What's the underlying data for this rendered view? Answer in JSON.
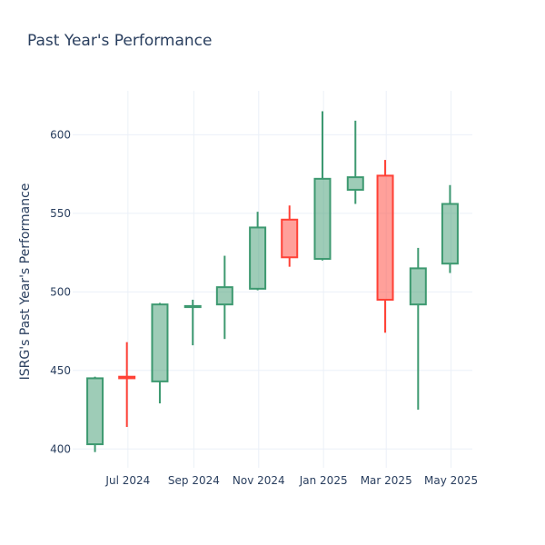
{
  "chart_data": {
    "type": "candlestick",
    "title": "Past Year's Performance",
    "ylabel": "ISRG's Past Year's Performance",
    "xlabel": "",
    "ylim": [
      388,
      628
    ],
    "y_ticks": [
      400,
      450,
      500,
      550,
      600
    ],
    "x_ticks": [
      "Jul 2024",
      "Sep 2024",
      "Nov 2024",
      "Jan 2025",
      "Mar 2025",
      "May 2025"
    ],
    "x_tick_dates": [
      "2024-07-01",
      "2024-09-01",
      "2024-11-01",
      "2025-01-01",
      "2025-03-01",
      "2025-05-01"
    ],
    "x_range": [
      "2024-05-10",
      "2025-05-21"
    ],
    "grid": true,
    "colors": {
      "increasing_line": "#3d9970",
      "increasing_fill": "rgba(61,153,112,0.5)",
      "decreasing_line": "#ff4136",
      "decreasing_fill": "rgba(255,65,54,0.5)",
      "text": "#2a3f5f",
      "grid": "#ebf0f8"
    },
    "candles": [
      {
        "date": "2024-05-31",
        "open": 403,
        "high": 446,
        "low": 398,
        "close": 445
      },
      {
        "date": "2024-06-30",
        "open": 446,
        "high": 468,
        "low": 414,
        "close": 445
      },
      {
        "date": "2024-07-31",
        "open": 443,
        "high": 493,
        "low": 429,
        "close": 492
      },
      {
        "date": "2024-08-31",
        "open": 491,
        "high": 495,
        "low": 466,
        "close": 491
      },
      {
        "date": "2024-09-30",
        "open": 492,
        "high": 523,
        "low": 470,
        "close": 503
      },
      {
        "date": "2024-10-31",
        "open": 502,
        "high": 551,
        "low": 501,
        "close": 541
      },
      {
        "date": "2024-11-30",
        "open": 546,
        "high": 555,
        "low": 516,
        "close": 522
      },
      {
        "date": "2024-12-31",
        "open": 521,
        "high": 615,
        "low": 520,
        "close": 572
      },
      {
        "date": "2025-01-31",
        "open": 565,
        "high": 609,
        "low": 556,
        "close": 573
      },
      {
        "date": "2025-02-28",
        "open": 574,
        "high": 584,
        "low": 474,
        "close": 495
      },
      {
        "date": "2025-03-31",
        "open": 492,
        "high": 528,
        "low": 425,
        "close": 515
      },
      {
        "date": "2025-04-30",
        "open": 518,
        "high": 568,
        "low": 512,
        "close": 556
      }
    ]
  }
}
